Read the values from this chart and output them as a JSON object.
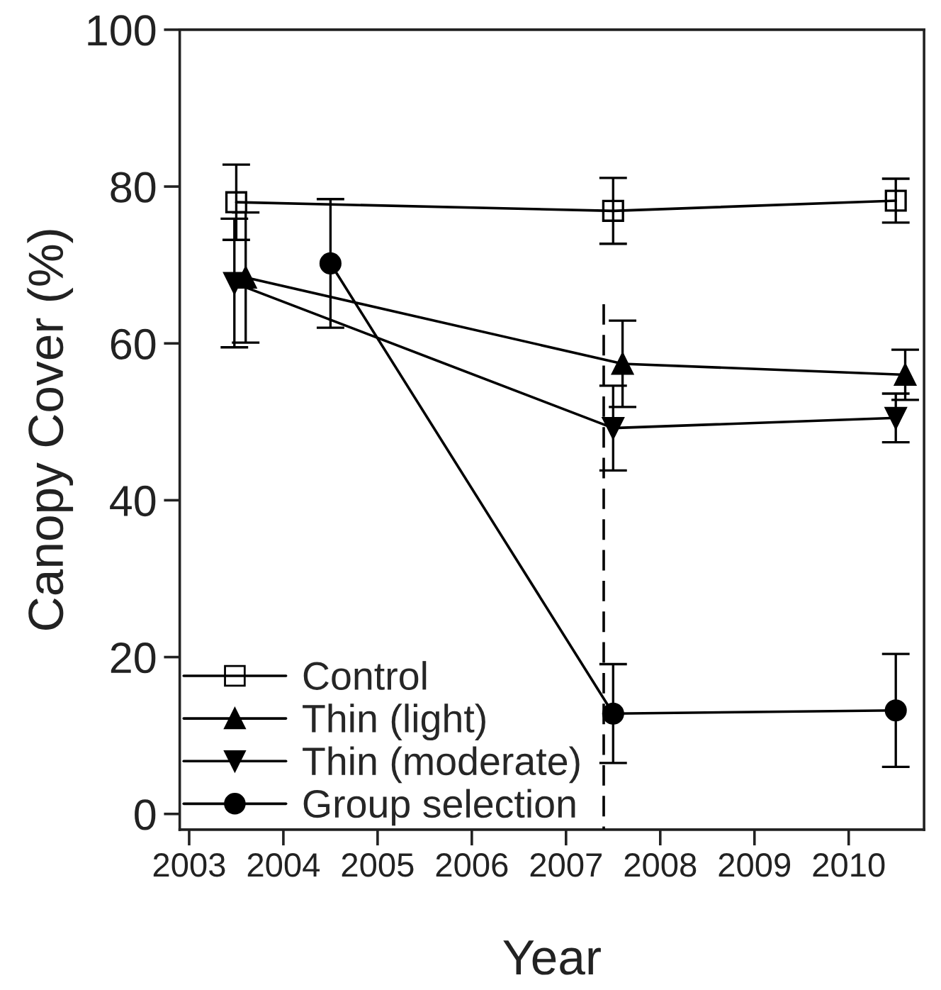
{
  "chart_data": {
    "type": "line",
    "xlabel": "Year",
    "ylabel": "Canopy Cover (%)",
    "xlim": [
      2002.9,
      2010.8
    ],
    "xticks": [
      2003,
      2004,
      2005,
      2006,
      2007,
      2008,
      2009,
      2010
    ],
    "ylim": [
      -2,
      100
    ],
    "yticks": [
      0,
      20,
      40,
      60,
      80,
      100
    ],
    "grid": false,
    "legend": "bottom left",
    "line_style": "solid",
    "series": [
      {
        "name": "Control",
        "color": "#000000",
        "marker": "square_open",
        "x": [
          2003.5,
          2007.5,
          2010.5
        ],
        "values": [
          78.0,
          76.9,
          78.2
        ],
        "errors": [
          4.8,
          4.2,
          2.8
        ]
      },
      {
        "name": "Thin (light)",
        "color": "#000000",
        "marker": "triangle",
        "x": [
          2003.6,
          2007.6,
          2010.6
        ],
        "values": [
          68.4,
          57.4,
          56.0
        ],
        "errors": [
          8.3,
          5.5,
          3.2
        ]
      },
      {
        "name": "Thin (moderate)",
        "color": "#000000",
        "marker": "triangle_down",
        "x": [
          2003.48,
          2007.5,
          2010.5
        ],
        "values": [
          67.7,
          49.2,
          50.5
        ],
        "errors": [
          8.2,
          5.4,
          3.1
        ]
      },
      {
        "name": "Group selection",
        "color": "#000000",
        "marker": "circle",
        "x": [
          2004.5,
          2007.5,
          2010.5
        ],
        "values": [
          70.2,
          12.8,
          13.2
        ],
        "errors": [
          8.2,
          6.3,
          7.2
        ]
      },
      {
        "color": "#000000",
        "marker": "none",
        "line_style": "dashed",
        "x": [
          2007.4,
          2007.4
        ],
        "values": [
          65,
          -2
        ]
      }
    ]
  }
}
